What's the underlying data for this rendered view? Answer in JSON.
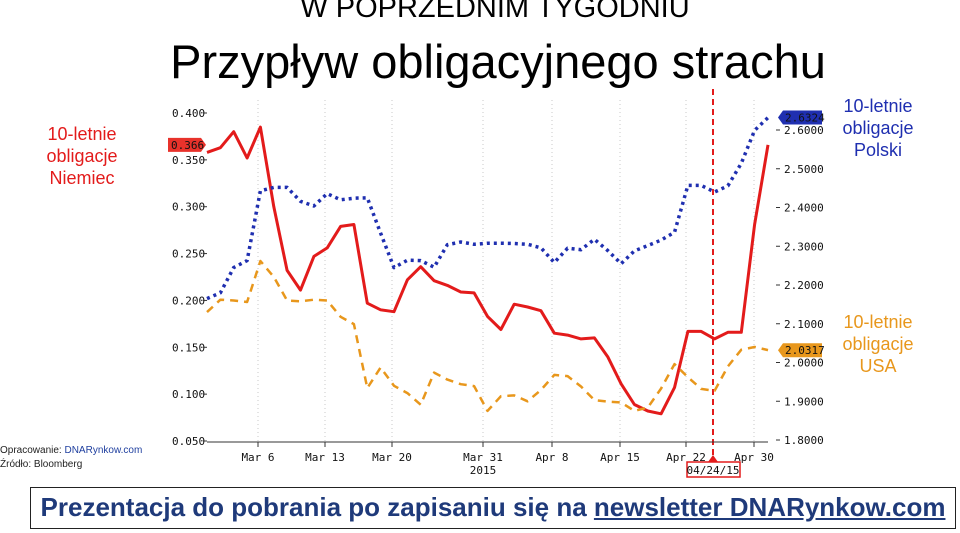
{
  "header": {
    "top": "W POPRZEDNIM TYGODNIU",
    "main": "Przypływ obligacyjnego strachu"
  },
  "labels": {
    "germany": [
      "10-letnie",
      "obligacje",
      "Niemiec"
    ],
    "poland": [
      "10-letnie",
      "obligacje",
      "Polski"
    ],
    "usa": [
      "10-letnie",
      "obligacje",
      "USA"
    ]
  },
  "source": {
    "prepared_prefix": "Opracowanie: ",
    "prepared_link": "DNARynkow.com",
    "source_line": "Źródło: Bloomberg"
  },
  "banner": {
    "text": "Prezentacja do pobrania po zapisaniu się na ",
    "link": "newsletter DNARynkow.com"
  },
  "colors": {
    "germany": "#e31b1b",
    "poland": "#1f2fb0",
    "usa": "#e8971c",
    "marker": "#e31b1b",
    "grid": "#c8c8c8"
  },
  "chart_data": {
    "type": "line",
    "x_labels": [
      "Mar 6",
      "Mar 13",
      "Mar 20",
      "Mar 31",
      "Apr 8",
      "Apr 15",
      "Apr 22",
      "Apr 30"
    ],
    "x_sublabel": "2015",
    "marker_label": "04/24/15",
    "left_axis": {
      "ticks": [
        "0.400",
        "0.350",
        "0.300",
        "0.250",
        "0.200",
        "0.150",
        "0.100",
        "0.050"
      ],
      "range": [
        0.05,
        0.4
      ]
    },
    "right_axis": {
      "ticks": [
        "2.6000",
        "2.5000",
        "2.4000",
        "2.3000",
        "2.2000",
        "2.1000",
        "2.0000",
        "1.9000",
        "1.8000"
      ],
      "range": [
        1.8,
        2.7
      ]
    },
    "last_values": {
      "germany": "0.366",
      "poland": "2.6324",
      "usa": "2.0317"
    },
    "series": [
      {
        "name": "10-letnie obligacje Niemiec",
        "axis": "left",
        "style": "solid",
        "values": [
          0.358,
          0.363,
          0.38,
          0.352,
          0.385,
          0.3,
          0.232,
          0.211,
          0.247,
          0.256,
          0.279,
          0.281,
          0.197,
          0.19,
          0.188,
          0.222,
          0.236,
          0.221,
          0.216,
          0.209,
          0.208,
          0.183,
          0.169,
          0.196,
          0.193,
          0.189,
          0.165,
          0.163,
          0.159,
          0.16,
          0.14,
          0.111,
          0.089,
          0.082,
          0.079,
          0.107,
          0.167,
          0.167,
          0.159,
          0.166,
          0.166,
          0.281,
          0.366
        ]
      },
      {
        "name": "10-letnie obligacje Polski",
        "axis": "right",
        "style": "dotted",
        "values": [
          2.165,
          2.18,
          2.245,
          2.263,
          2.443,
          2.452,
          2.452,
          2.416,
          2.404,
          2.436,
          2.42,
          2.424,
          2.425,
          2.334,
          2.245,
          2.264,
          2.263,
          2.246,
          2.304,
          2.311,
          2.305,
          2.308,
          2.308,
          2.307,
          2.305,
          2.296,
          2.258,
          2.295,
          2.291,
          2.318,
          2.289,
          2.255,
          2.288,
          2.302,
          2.316,
          2.336,
          2.457,
          2.457,
          2.44,
          2.456,
          2.514,
          2.599,
          2.632
        ]
      },
      {
        "name": "10-letnie obligacje USA",
        "axis": "right",
        "style": "dashed",
        "values": [
          2.13,
          2.162,
          2.16,
          2.156,
          2.262,
          2.221,
          2.16,
          2.158,
          2.162,
          2.16,
          2.118,
          2.099,
          1.934,
          1.987,
          1.94,
          1.921,
          1.891,
          1.974,
          1.956,
          1.944,
          1.939,
          1.875,
          1.913,
          1.915,
          1.9,
          1.929,
          1.968,
          1.965,
          1.938,
          1.903,
          1.899,
          1.897,
          1.875,
          1.884,
          1.933,
          1.996,
          1.962,
          1.932,
          1.927,
          1.99,
          2.033,
          2.04,
          2.032
        ]
      }
    ]
  }
}
